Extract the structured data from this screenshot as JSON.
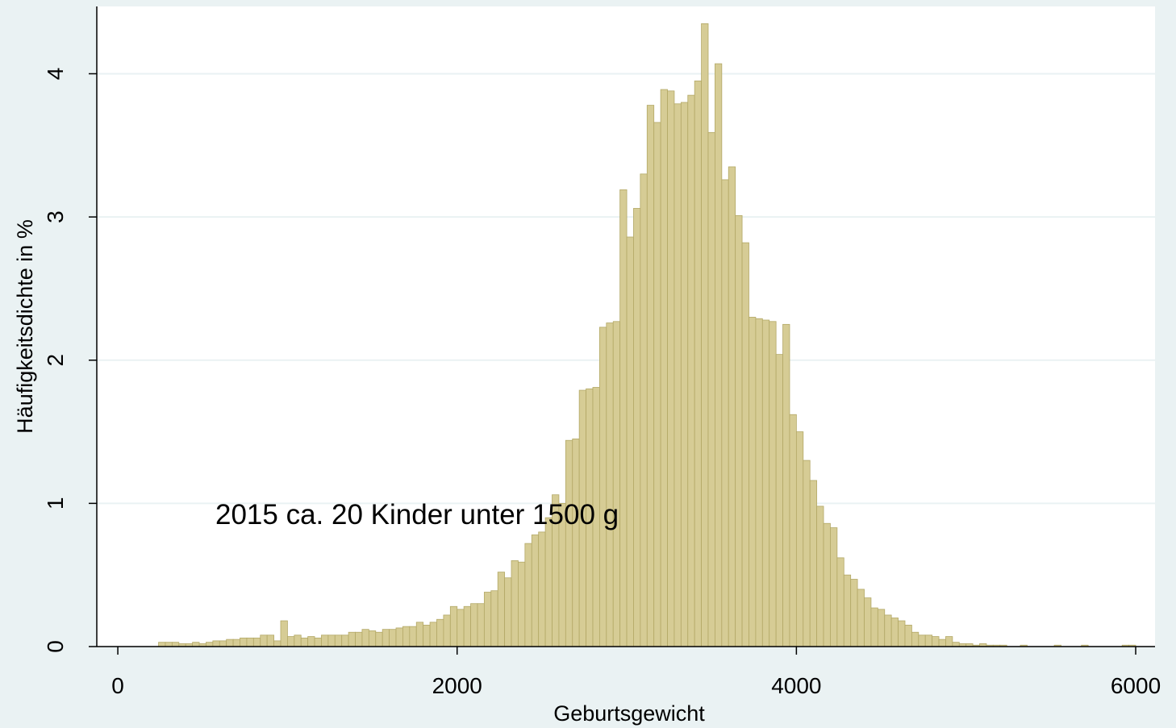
{
  "chart_data": {
    "type": "histogram",
    "xlabel": "Geburtsgewicht",
    "ylabel": "Häufigkeitsdichte in %",
    "annotation": "2015 ca. 20 Kinder unter 1500 g",
    "color": "#d6cc95",
    "edgecolor": "#b3a866",
    "grid": true,
    "bins": [
      240,
      280,
      320,
      360,
      400,
      440,
      480,
      520,
      560,
      600,
      640,
      680,
      720,
      760,
      800,
      840,
      880,
      920,
      960,
      1000,
      1040,
      1080,
      1120,
      1160,
      1200,
      1240,
      1280,
      1320,
      1360,
      1400,
      1440,
      1480,
      1520,
      1560,
      1600,
      1640,
      1680,
      1720,
      1760,
      1800,
      1840,
      1880,
      1920,
      1960,
      2000,
      2040,
      2080,
      2120,
      2160,
      2200,
      2240,
      2280,
      2320,
      2360,
      2400,
      2440,
      2480,
      2520,
      2560,
      2600,
      2640,
      2680,
      2720,
      2760,
      2800,
      2840,
      2880,
      2920,
      2960,
      3000,
      3040,
      3080,
      3120,
      3160,
      3200,
      3240,
      3280,
      3320,
      3360,
      3400,
      3440,
      3480,
      3520,
      3560,
      3600,
      3640,
      3680,
      3720,
      3760,
      3800,
      3840,
      3880,
      3920,
      3960,
      4000,
      4040,
      4080,
      4120,
      4160,
      4200,
      4240,
      4280,
      4320,
      4360,
      4400,
      4440,
      4480,
      4520,
      4560,
      4600,
      4640,
      4680,
      4720,
      4760,
      4800,
      4840,
      4880,
      4920,
      4960,
      5000,
      5040,
      5080,
      5120,
      5160,
      5200,
      5240,
      5280,
      5320,
      5360,
      5400,
      5440,
      5480,
      5520,
      5560,
      5600,
      5640,
      5680,
      5720,
      5760,
      5800,
      5840,
      5880,
      5920,
      5960,
      6000
    ],
    "values": [
      0.03,
      0.03,
      0.03,
      0.02,
      0.02,
      0.03,
      0.02,
      0.03,
      0.04,
      0.04,
      0.05,
      0.05,
      0.06,
      0.06,
      0.06,
      0.08,
      0.08,
      0.04,
      0.18,
      0.07,
      0.08,
      0.06,
      0.07,
      0.06,
      0.08,
      0.08,
      0.08,
      0.08,
      0.1,
      0.1,
      0.12,
      0.11,
      0.1,
      0.12,
      0.12,
      0.13,
      0.14,
      0.14,
      0.17,
      0.15,
      0.17,
      0.19,
      0.22,
      0.28,
      0.26,
      0.28,
      0.3,
      0.3,
      0.38,
      0.39,
      0.52,
      0.48,
      0.6,
      0.59,
      0.72,
      0.78,
      0.8,
      0.9,
      1.06,
      1.0,
      1.44,
      1.45,
      1.79,
      1.8,
      1.81,
      2.23,
      2.26,
      2.27,
      3.19,
      2.86,
      3.06,
      3.3,
      3.78,
      3.66,
      3.89,
      3.88,
      3.79,
      3.8,
      3.85,
      3.95,
      4.35,
      3.59,
      4.07,
      3.26,
      3.35,
      3.01,
      2.82,
      2.3,
      2.29,
      2.28,
      2.27,
      2.04,
      2.25,
      1.62,
      1.5,
      1.3,
      1.16,
      0.98,
      0.86,
      0.83,
      0.62,
      0.5,
      0.47,
      0.4,
      0.34,
      0.27,
      0.26,
      0.22,
      0.2,
      0.18,
      0.15,
      0.1,
      0.08,
      0.08,
      0.07,
      0.05,
      0.07,
      0.03,
      0.02,
      0.02,
      0.01,
      0.02,
      0.01,
      0.01,
      0.01,
      0,
      0,
      0.01,
      0,
      0,
      0,
      0,
      0.01,
      0,
      0,
      0,
      0.01,
      0,
      0,
      0,
      0,
      0,
      0.01,
      0.01
    ],
    "xlim": [
      -124,
      6114
    ],
    "ylim": [
      0,
      4.47
    ],
    "xticks": [
      0,
      2000,
      4000,
      6000
    ],
    "yticks": [
      0,
      1,
      2,
      3,
      4
    ]
  }
}
